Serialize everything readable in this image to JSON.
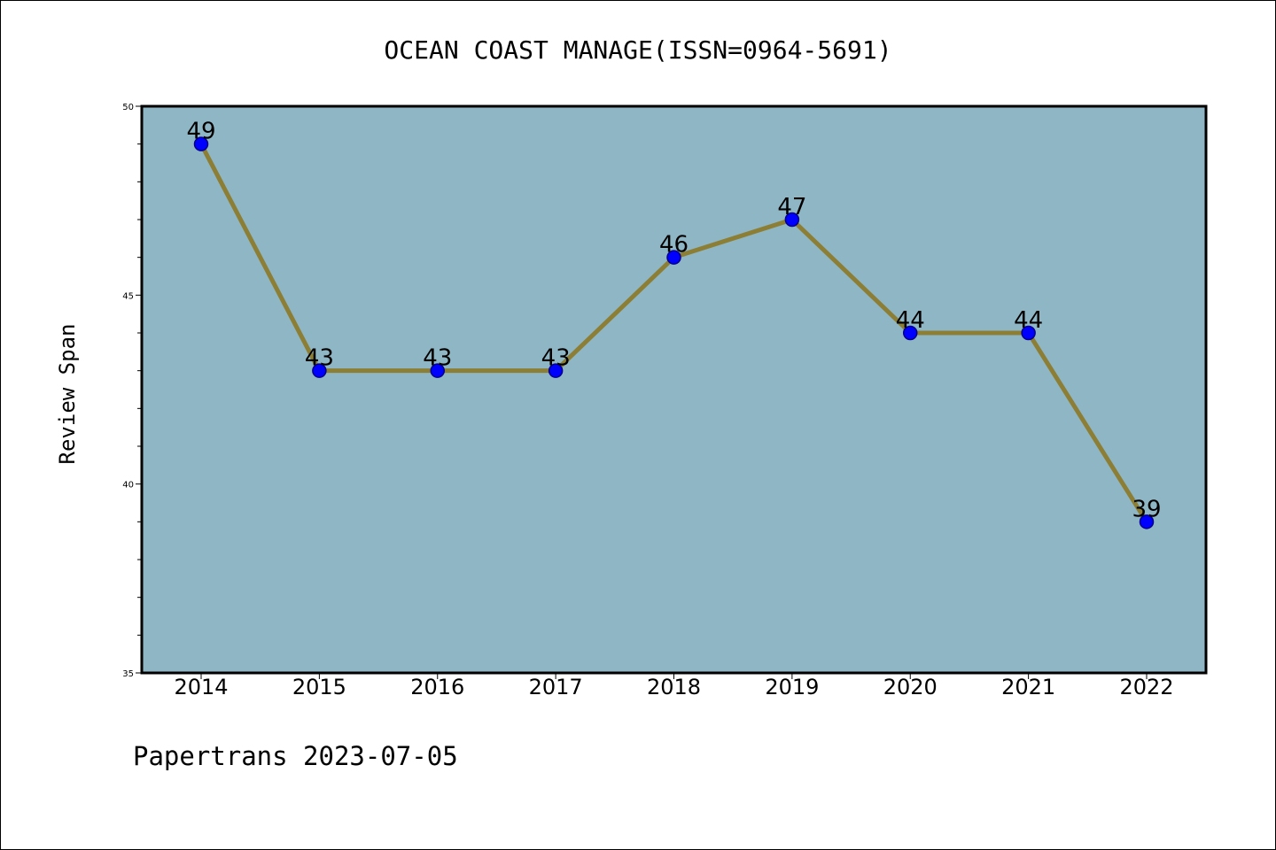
{
  "chart_data": {
    "type": "line",
    "title": "OCEAN COAST MANAGE(ISSN=0964-5691)",
    "ylabel": "Review Span",
    "xlabel": "",
    "categories": [
      "2014",
      "2015",
      "2016",
      "2017",
      "2018",
      "2019",
      "2020",
      "2021",
      "2022"
    ],
    "series": [
      {
        "values": [
          49,
          43,
          43,
          43,
          46,
          47,
          44,
          44,
          39
        ]
      }
    ],
    "data_labels": [
      "49",
      "43",
      "43",
      "43",
      "46",
      "47",
      "44",
      "44",
      "39"
    ],
    "ylim": [
      35,
      50
    ],
    "yticks": [
      "35",
      "40",
      "45",
      "50"
    ],
    "grid": false,
    "legend": "none",
    "colors": {
      "plot_background": "#8fb6c5",
      "line": "#8c7f35",
      "marker": "#0000ff",
      "marker_edge": "#00008b"
    }
  },
  "footer": "Papertrans 2023-07-05"
}
